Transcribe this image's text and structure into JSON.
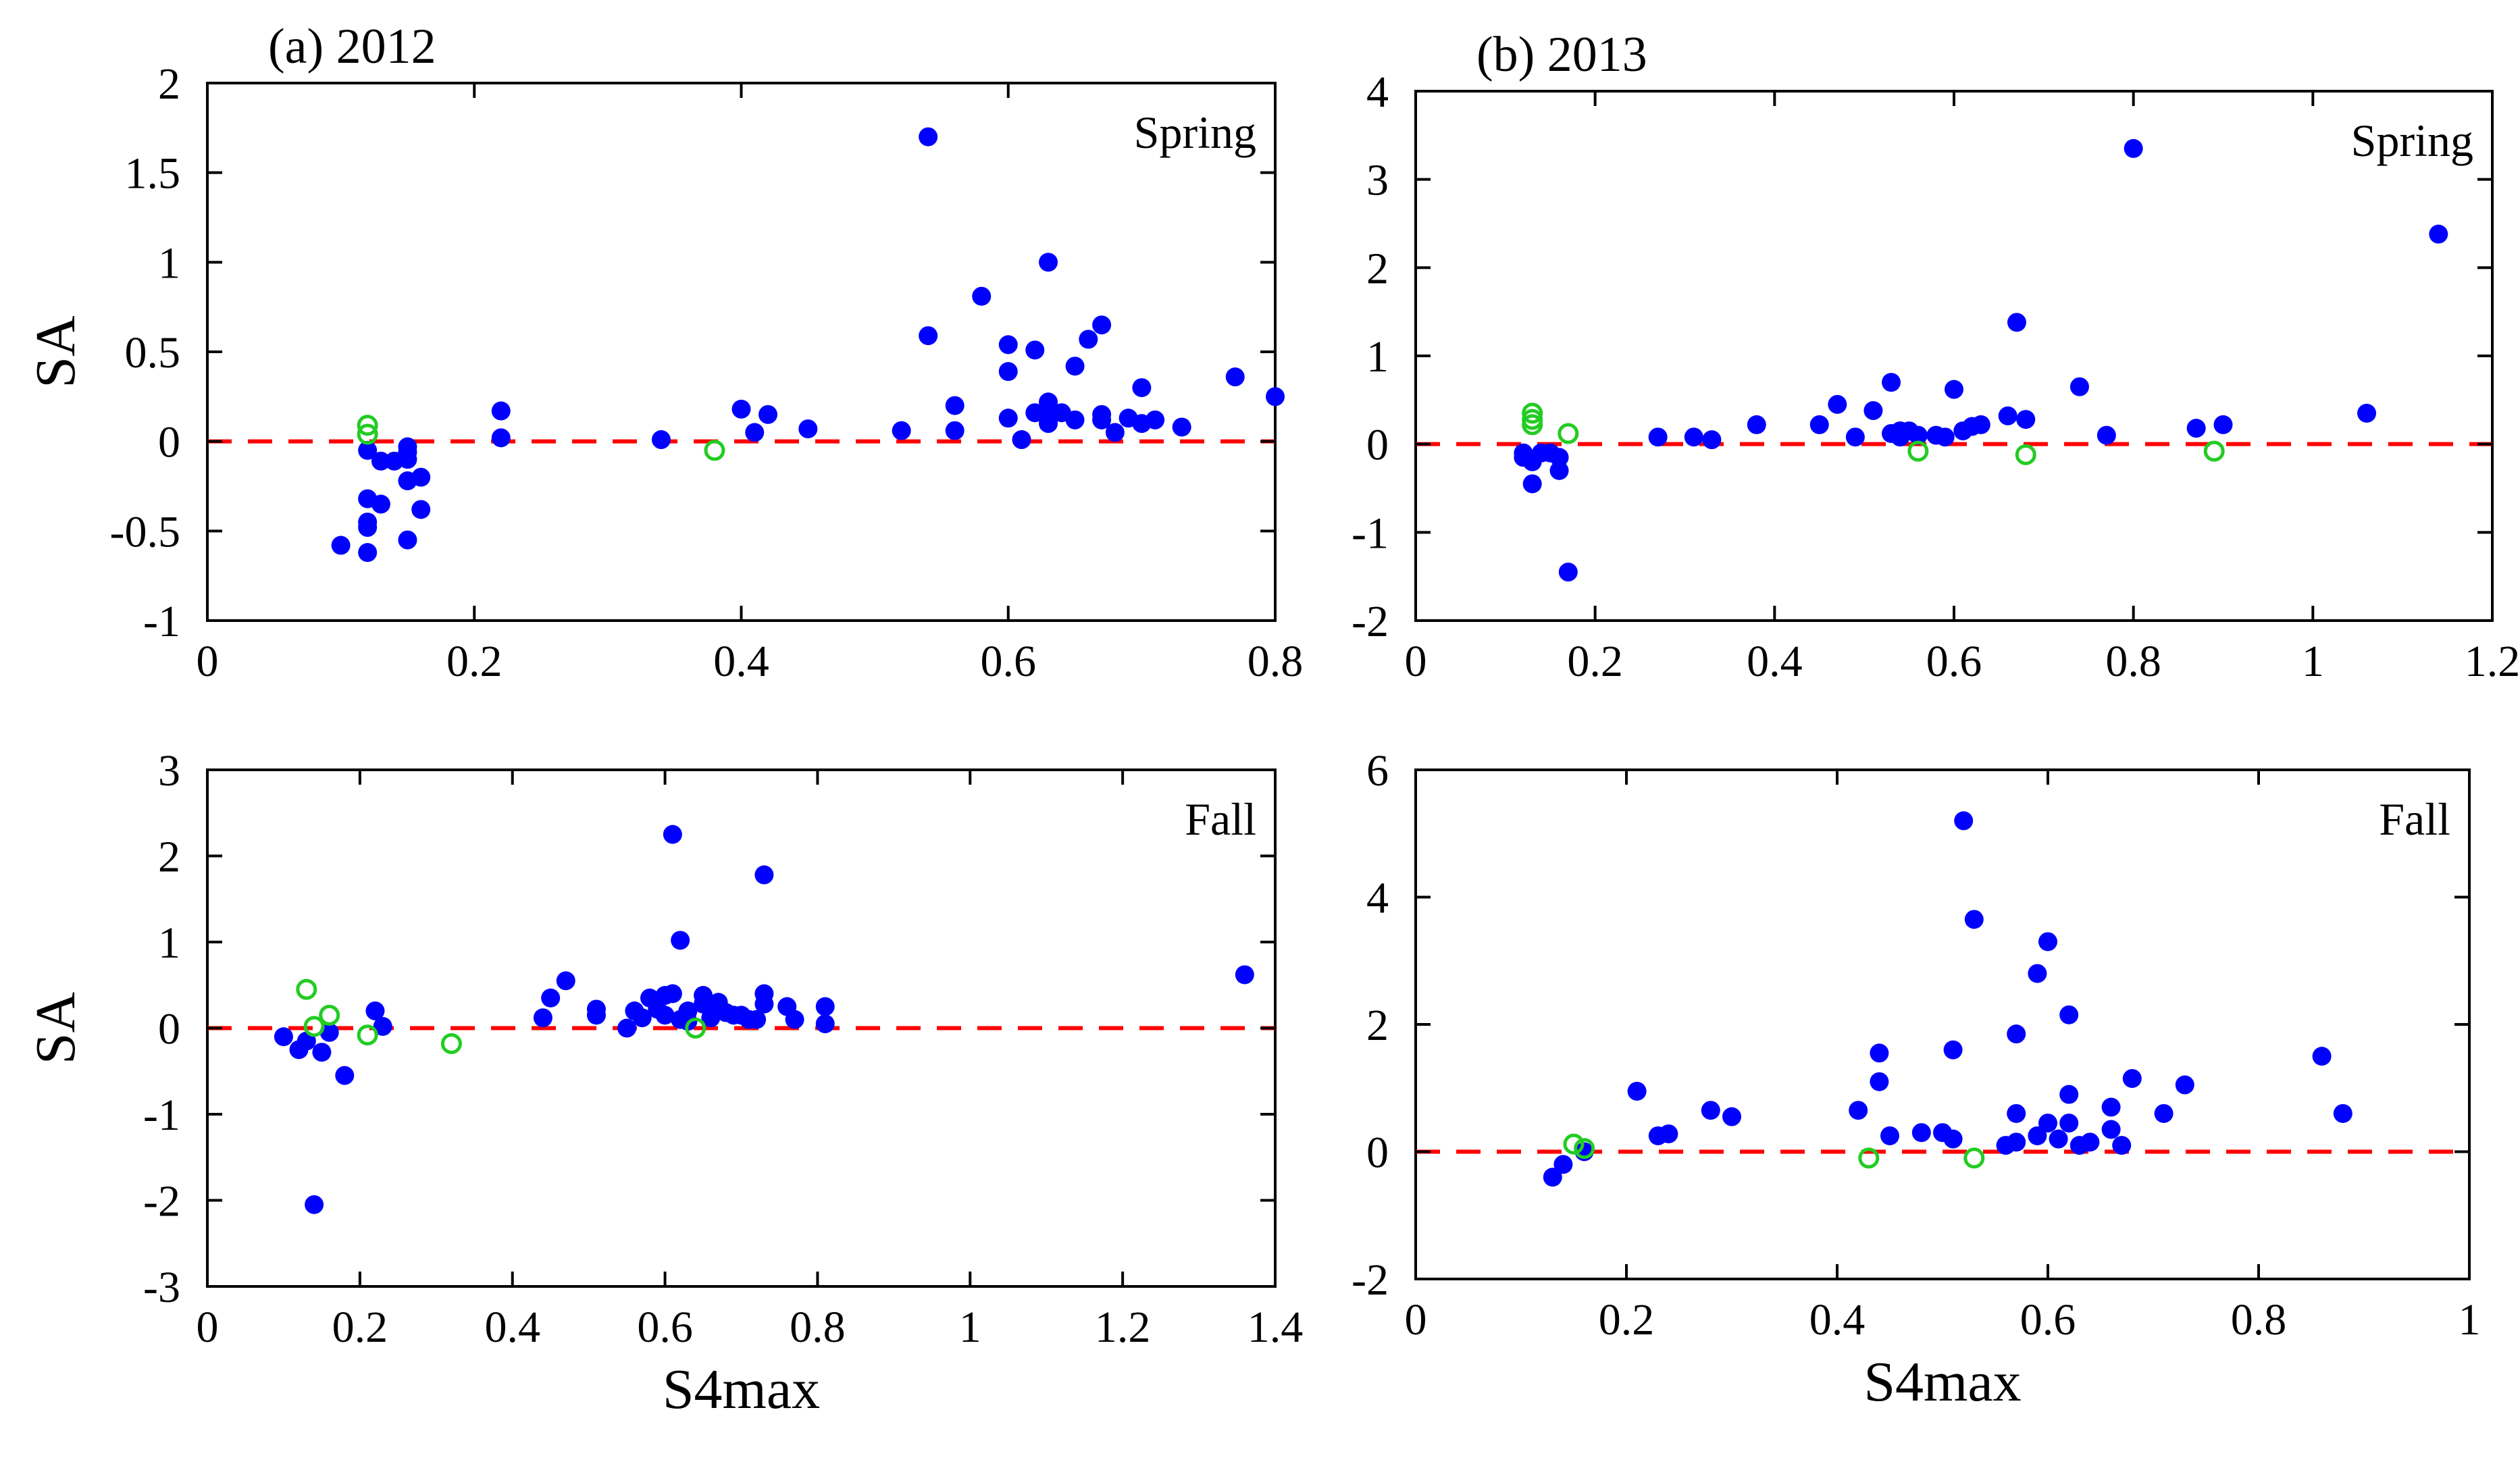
{
  "colors": {
    "blue": "#0000ff",
    "green": "#22cc22",
    "reference_line": "#ff0000"
  },
  "chart_data": [
    {
      "id": "a-spring",
      "type": "scatter",
      "title": "(a) 2012",
      "annotation": "Spring",
      "xlabel": "",
      "ylabel": "SA",
      "xlim": [
        0,
        0.8
      ],
      "ylim": [
        -1,
        2
      ],
      "xticks": [
        0,
        0.2,
        0.4,
        0.6,
        0.8
      ],
      "xtick_labels": [
        "0",
        "0.2",
        "0.4",
        "0.6",
        "0.8"
      ],
      "yticks": [
        -1,
        -0.5,
        0,
        0.5,
        1,
        1.5,
        2
      ],
      "ytick_labels": [
        "-1",
        "-0.5",
        "0",
        "0.5",
        "1",
        "1.5",
        "2"
      ],
      "reference_y": 0,
      "series": [
        {
          "name": "filled",
          "marker": "filled-circle",
          "color": "#0000ff",
          "points": [
            [
              0.1,
              -0.58
            ],
            [
              0.12,
              -0.62
            ],
            [
              0.12,
              -0.48
            ],
            [
              0.12,
              -0.45
            ],
            [
              0.12,
              -0.32
            ],
            [
              0.12,
              -0.05
            ],
            [
              0.13,
              -0.35
            ],
            [
              0.13,
              -0.11
            ],
            [
              0.14,
              -0.11
            ],
            [
              0.15,
              -0.1
            ],
            [
              0.15,
              -0.03
            ],
            [
              0.15,
              -0.06
            ],
            [
              0.15,
              -0.55
            ],
            [
              0.15,
              -0.22
            ],
            [
              0.16,
              -0.2
            ],
            [
              0.16,
              -0.38
            ],
            [
              0.22,
              0.17
            ],
            [
              0.22,
              0.02
            ],
            [
              0.34,
              0.01
            ],
            [
              0.4,
              0.18
            ],
            [
              0.41,
              0.05
            ],
            [
              0.42,
              0.15
            ],
            [
              0.45,
              0.07
            ],
            [
              0.52,
              0.06
            ],
            [
              0.54,
              1.7
            ],
            [
              0.54,
              0.59
            ],
            [
              0.56,
              0.2
            ],
            [
              0.56,
              0.06
            ],
            [
              0.58,
              0.81
            ],
            [
              0.6,
              0.54
            ],
            [
              0.6,
              0.39
            ],
            [
              0.6,
              0.13
            ],
            [
              0.61,
              0.01
            ],
            [
              0.62,
              0.51
            ],
            [
              0.62,
              0.16
            ],
            [
              0.63,
              1.0
            ],
            [
              0.63,
              0.22
            ],
            [
              0.63,
              0.18
            ],
            [
              0.63,
              0.1
            ],
            [
              0.64,
              0.16
            ],
            [
              0.65,
              0.42
            ],
            [
              0.65,
              0.12
            ],
            [
              0.66,
              0.57
            ],
            [
              0.67,
              0.65
            ],
            [
              0.67,
              0.15
            ],
            [
              0.67,
              0.12
            ],
            [
              0.68,
              0.05
            ],
            [
              0.69,
              0.13
            ],
            [
              0.7,
              0.3
            ],
            [
              0.7,
              0.1
            ],
            [
              0.71,
              0.12
            ],
            [
              0.73,
              0.08
            ],
            [
              0.77,
              0.36
            ],
            [
              0.8,
              0.25
            ]
          ]
        },
        {
          "name": "open",
          "marker": "open-circle",
          "color": "#22cc22",
          "points": [
            [
              0.12,
              0.09
            ],
            [
              0.12,
              0.04
            ],
            [
              0.38,
              -0.05
            ]
          ]
        }
      ]
    },
    {
      "id": "b-spring",
      "type": "scatter",
      "title": "(b) 2013",
      "annotation": "Spring",
      "xlabel": "",
      "ylabel": "",
      "xlim": [
        0,
        1.2
      ],
      "ylim": [
        -2,
        4
      ],
      "xticks": [
        0,
        0.2,
        0.4,
        0.6,
        0.8,
        1,
        1.2
      ],
      "xtick_labels": [
        "0",
        "0.2",
        "0.4",
        "0.6",
        "0.8",
        "1",
        "1.2"
      ],
      "yticks": [
        -2,
        -1,
        0,
        1,
        2,
        3,
        4
      ],
      "ytick_labels": [
        "-2",
        "-1",
        "0",
        "1",
        "2",
        "3",
        "4"
      ],
      "reference_y": 0,
      "series": [
        {
          "name": "filled",
          "marker": "filled-circle",
          "color": "#0000ff",
          "points": [
            [
              0.12,
              -0.1
            ],
            [
              0.12,
              -0.15
            ],
            [
              0.13,
              -0.45
            ],
            [
              0.13,
              -0.2
            ],
            [
              0.14,
              -0.1
            ],
            [
              0.15,
              -0.1
            ],
            [
              0.16,
              -0.3
            ],
            [
              0.16,
              -0.15
            ],
            [
              0.17,
              -1.45
            ],
            [
              0.27,
              0.08
            ],
            [
              0.31,
              0.08
            ],
            [
              0.33,
              0.05
            ],
            [
              0.38,
              0.22
            ],
            [
              0.45,
              0.22
            ],
            [
              0.47,
              0.45
            ],
            [
              0.49,
              0.08
            ],
            [
              0.51,
              0.38
            ],
            [
              0.53,
              0.7
            ],
            [
              0.53,
              0.12
            ],
            [
              0.54,
              0.15
            ],
            [
              0.54,
              0.08
            ],
            [
              0.55,
              0.15
            ],
            [
              0.56,
              0.1
            ],
            [
              0.58,
              0.1
            ],
            [
              0.59,
              0.08
            ],
            [
              0.6,
              0.62
            ],
            [
              0.61,
              0.15
            ],
            [
              0.62,
              0.2
            ],
            [
              0.63,
              0.22
            ],
            [
              0.66,
              0.32
            ],
            [
              0.67,
              1.38
            ],
            [
              0.68,
              0.28
            ],
            [
              0.74,
              0.65
            ],
            [
              0.77,
              0.1
            ],
            [
              0.8,
              3.35
            ],
            [
              0.87,
              0.18
            ],
            [
              0.9,
              0.22
            ],
            [
              1.06,
              0.35
            ],
            [
              1.14,
              2.38
            ]
          ]
        },
        {
          "name": "open",
          "marker": "open-circle",
          "color": "#22cc22",
          "points": [
            [
              0.13,
              0.35
            ],
            [
              0.13,
              0.28
            ],
            [
              0.13,
              0.22
            ],
            [
              0.17,
              0.12
            ],
            [
              0.56,
              -0.08
            ],
            [
              0.68,
              -0.12
            ],
            [
              0.89,
              -0.08
            ]
          ]
        }
      ]
    },
    {
      "id": "a-fall",
      "type": "scatter",
      "title": "",
      "annotation": "Fall",
      "xlabel": "S4max",
      "ylabel": "SA",
      "xlim": [
        0,
        1.4
      ],
      "ylim": [
        -3,
        3
      ],
      "xticks": [
        0,
        0.2,
        0.4,
        0.6,
        0.8,
        1,
        1.2,
        1.4
      ],
      "xtick_labels": [
        "0",
        "0.2",
        "0.4",
        "0.6",
        "0.8",
        "1",
        "1.2",
        "1.4"
      ],
      "yticks": [
        -3,
        -2,
        -1,
        0,
        1,
        2,
        3
      ],
      "ytick_labels": [
        "-3",
        "-2",
        "-1",
        "0",
        "1",
        "2",
        "3"
      ],
      "reference_y": 0,
      "series": [
        {
          "name": "filled",
          "marker": "filled-circle",
          "color": "#0000ff",
          "points": [
            [
              0.1,
              -0.1
            ],
            [
              0.12,
              -0.25
            ],
            [
              0.13,
              -0.15
            ],
            [
              0.14,
              -2.05
            ],
            [
              0.15,
              -0.28
            ],
            [
              0.16,
              -0.05
            ],
            [
              0.18,
              -0.55
            ],
            [
              0.22,
              0.2
            ],
            [
              0.23,
              0.02
            ],
            [
              0.44,
              0.12
            ],
            [
              0.45,
              0.35
            ],
            [
              0.47,
              0.55
            ],
            [
              0.51,
              0.15
            ],
            [
              0.51,
              0.22
            ],
            [
              0.55,
              0.0
            ],
            [
              0.56,
              0.2
            ],
            [
              0.57,
              0.12
            ],
            [
              0.58,
              0.35
            ],
            [
              0.59,
              0.22
            ],
            [
              0.6,
              0.38
            ],
            [
              0.6,
              0.15
            ],
            [
              0.61,
              2.25
            ],
            [
              0.61,
              0.4
            ],
            [
              0.62,
              1.02
            ],
            [
              0.62,
              0.1
            ],
            [
              0.63,
              0.08
            ],
            [
              0.63,
              0.2
            ],
            [
              0.65,
              0.38
            ],
            [
              0.65,
              0.28
            ],
            [
              0.66,
              0.12
            ],
            [
              0.67,
              0.3
            ],
            [
              0.68,
              0.18
            ],
            [
              0.69,
              0.15
            ],
            [
              0.7,
              0.15
            ],
            [
              0.71,
              0.1
            ],
            [
              0.72,
              0.1
            ],
            [
              0.73,
              1.78
            ],
            [
              0.73,
              0.4
            ],
            [
              0.73,
              0.28
            ],
            [
              0.76,
              0.25
            ],
            [
              0.77,
              0.1
            ],
            [
              0.81,
              0.25
            ],
            [
              0.81,
              0.05
            ],
            [
              1.36,
              0.62
            ]
          ]
        },
        {
          "name": "open",
          "marker": "open-circle",
          "color": "#22cc22",
          "points": [
            [
              0.13,
              0.45
            ],
            [
              0.14,
              0.02
            ],
            [
              0.16,
              0.15
            ],
            [
              0.21,
              -0.08
            ],
            [
              0.32,
              -0.18
            ],
            [
              0.64,
              0.0
            ]
          ]
        }
      ]
    },
    {
      "id": "b-fall",
      "type": "scatter",
      "title": "",
      "annotation": "Fall",
      "xlabel": "S4max",
      "ylabel": "",
      "xlim": [
        0,
        1
      ],
      "ylim": [
        -2,
        6
      ],
      "xticks": [
        0,
        0.2,
        0.4,
        0.6,
        0.8,
        1
      ],
      "xtick_labels": [
        "0",
        "0.2",
        "0.4",
        "0.6",
        "0.8",
        "1"
      ],
      "yticks": [
        -2,
        0,
        2,
        4,
        6
      ],
      "ytick_labels": [
        "-2",
        "0",
        "2",
        "4",
        "6"
      ],
      "reference_y": 0,
      "series": [
        {
          "name": "filled",
          "marker": "filled-circle",
          "color": "#0000ff",
          "points": [
            [
              0.13,
              -0.4
            ],
            [
              0.14,
              -0.2
            ],
            [
              0.16,
              0.0
            ],
            [
              0.21,
              0.95
            ],
            [
              0.23,
              0.25
            ],
            [
              0.24,
              0.28
            ],
            [
              0.28,
              0.65
            ],
            [
              0.3,
              0.55
            ],
            [
              0.42,
              0.65
            ],
            [
              0.44,
              1.55
            ],
            [
              0.44,
              1.1
            ],
            [
              0.45,
              0.25
            ],
            [
              0.48,
              0.3
            ],
            [
              0.5,
              0.3
            ],
            [
              0.51,
              1.6
            ],
            [
              0.51,
              0.2
            ],
            [
              0.52,
              5.2
            ],
            [
              0.53,
              3.65
            ],
            [
              0.56,
              0.1
            ],
            [
              0.57,
              1.85
            ],
            [
              0.57,
              0.6
            ],
            [
              0.57,
              0.15
            ],
            [
              0.59,
              2.8
            ],
            [
              0.59,
              0.25
            ],
            [
              0.6,
              3.3
            ],
            [
              0.6,
              0.45
            ],
            [
              0.61,
              0.2
            ],
            [
              0.62,
              2.15
            ],
            [
              0.62,
              0.9
            ],
            [
              0.62,
              0.45
            ],
            [
              0.63,
              0.1
            ],
            [
              0.64,
              0.15
            ],
            [
              0.66,
              0.7
            ],
            [
              0.66,
              0.35
            ],
            [
              0.67,
              0.1
            ],
            [
              0.68,
              1.15
            ],
            [
              0.71,
              0.6
            ],
            [
              0.73,
              1.05
            ],
            [
              0.86,
              1.5
            ],
            [
              0.88,
              0.6
            ]
          ]
        },
        {
          "name": "open",
          "marker": "open-circle",
          "color": "#22cc22",
          "points": [
            [
              0.15,
              0.12
            ],
            [
              0.16,
              0.05
            ],
            [
              0.43,
              -0.1
            ],
            [
              0.53,
              -0.1
            ]
          ]
        }
      ]
    }
  ]
}
